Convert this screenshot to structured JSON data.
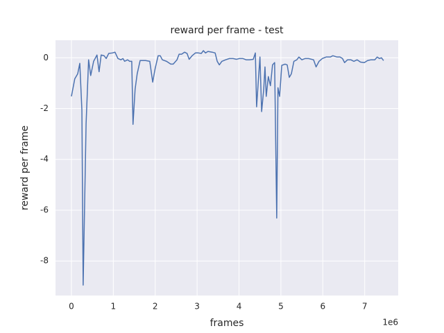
{
  "chart_data": {
    "type": "line",
    "title": "reward per frame - test",
    "x_label": "frames",
    "y_label": "reward per frame",
    "x_offset_label": "1e6",
    "color": "#4c72b0",
    "grid": true,
    "x": [
      0,
      0.08,
      0.15,
      0.2,
      0.25,
      0.28,
      0.35,
      0.41,
      0.46,
      0.53,
      0.61,
      0.66,
      0.71,
      0.78,
      0.83,
      0.89,
      0.98,
      1.04,
      1.11,
      1.18,
      1.23,
      1.27,
      1.34,
      1.39,
      1.44,
      1.47,
      1.52,
      1.57,
      1.64,
      1.77,
      1.87,
      1.94,
      2.0,
      2.07,
      2.12,
      2.17,
      2.27,
      2.37,
      2.43,
      2.52,
      2.57,
      2.63,
      2.7,
      2.76,
      2.81,
      2.88,
      2.96,
      3.03,
      3.1,
      3.15,
      3.2,
      3.26,
      3.36,
      3.43,
      3.48,
      3.53,
      3.59,
      3.68,
      3.77,
      3.86,
      3.94,
      4.01,
      4.09,
      4.17,
      4.25,
      4.34,
      4.39,
      4.42,
      4.47,
      4.5,
      4.54,
      4.59,
      4.62,
      4.65,
      4.7,
      4.75,
      4.8,
      4.85,
      4.9,
      4.93,
      4.97,
      5.02,
      5.1,
      5.15,
      5.2,
      5.25,
      5.31,
      5.38,
      5.43,
      5.5,
      5.58,
      5.66,
      5.78,
      5.84,
      5.91,
      5.99,
      6.08,
      6.18,
      6.24,
      6.34,
      6.41,
      6.47,
      6.52,
      6.59,
      6.67,
      6.74,
      6.82,
      6.9,
      6.99,
      7.07,
      7.15,
      7.24,
      7.3,
      7.35,
      7.4,
      7.45
    ],
    "values": [
      -1.52,
      -0.83,
      -0.63,
      -0.22,
      -2.07,
      -8.95,
      -2.6,
      -0.08,
      -0.7,
      -0.14,
      0.11,
      -0.55,
      0.11,
      0.08,
      -0.03,
      0.17,
      0.19,
      0.22,
      -0.03,
      -0.08,
      -0.03,
      -0.14,
      -0.08,
      -0.14,
      -0.14,
      -2.62,
      -1.24,
      -0.63,
      -0.11,
      -0.11,
      -0.14,
      -0.96,
      -0.41,
      0.08,
      0.08,
      -0.08,
      -0.14,
      -0.25,
      -0.25,
      -0.08,
      0.14,
      0.14,
      0.22,
      0.17,
      -0.06,
      0.08,
      0.19,
      0.19,
      0.17,
      0.28,
      0.19,
      0.25,
      0.22,
      0.19,
      -0.14,
      -0.28,
      -0.14,
      -0.08,
      -0.03,
      -0.03,
      -0.06,
      -0.03,
      -0.03,
      -0.08,
      -0.08,
      -0.06,
      0.19,
      -1.93,
      -0.69,
      0.03,
      -2.12,
      -1.24,
      -0.36,
      -1.52,
      -0.74,
      -1.1,
      -0.28,
      -0.19,
      -6.31,
      -1.18,
      -1.52,
      -0.3,
      -0.25,
      -0.28,
      -0.77,
      -0.63,
      -0.14,
      -0.08,
      0.03,
      -0.08,
      -0.03,
      -0.03,
      -0.08,
      -0.36,
      -0.14,
      -0.03,
      0.03,
      0.03,
      0.08,
      0.03,
      0.03,
      -0.03,
      -0.19,
      -0.08,
      -0.08,
      -0.14,
      -0.08,
      -0.17,
      -0.19,
      -0.11,
      -0.08,
      -0.08,
      0.03,
      -0.03,
      0,
      -0.11
    ],
    "xlim": [
      -0.38,
      7.8
    ],
    "xticks": [
      0,
      1,
      2,
      3,
      4,
      5,
      6,
      7
    ],
    "ylim": [
      -9.36,
      0.69
    ],
    "yticks": [
      -8,
      -6,
      -4,
      -2,
      0
    ]
  }
}
